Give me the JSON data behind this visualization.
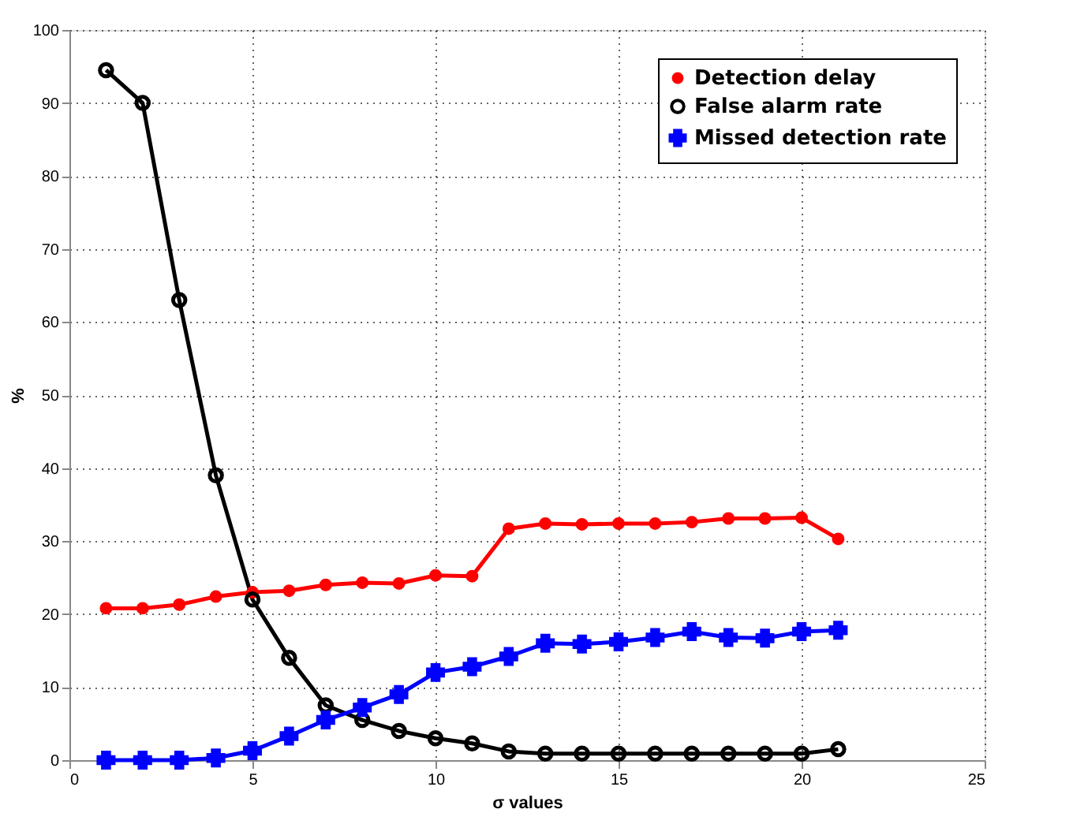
{
  "chart_data": {
    "type": "line",
    "xlabel": "σ values",
    "ylabel": "%",
    "x": [
      1,
      2,
      3,
      4,
      5,
      6,
      7,
      8,
      9,
      10,
      11,
      12,
      13,
      14,
      15,
      16,
      17,
      18,
      19,
      20,
      21
    ],
    "series": [
      {
        "name": "Detection delay",
        "color": "#ff0000",
        "marker": "circle",
        "values": [
          20.8,
          20.8,
          21.3,
          22.4,
          23.0,
          23.2,
          24.0,
          24.3,
          24.2,
          25.3,
          25.2,
          31.7,
          32.4,
          32.3,
          32.4,
          32.4,
          32.6,
          33.1,
          33.1,
          33.2,
          30.3
        ]
      },
      {
        "name": "False alarm rate",
        "color": "#000000",
        "marker": "open circle",
        "values": [
          94.5,
          90,
          63,
          39,
          22,
          14,
          7.5,
          5.5,
          4,
          3,
          2.3,
          1.2,
          0.9,
          0.9,
          0.9,
          0.9,
          0.9,
          0.9,
          0.9,
          0.9,
          1.5
        ]
      },
      {
        "name": "Missed detection rate",
        "color": "#0000ff",
        "marker": "cross",
        "values": [
          0,
          0,
          0,
          0.3,
          1.3,
          3.3,
          5.5,
          7.2,
          9,
          12,
          12.8,
          14.2,
          16,
          15.9,
          16.2,
          16.8,
          17.6,
          16.8,
          16.7,
          17.6,
          17.8
        ]
      }
    ],
    "xlim": [
      0,
      25
    ],
    "xticks": [
      0,
      5,
      10,
      15,
      20,
      25
    ],
    "ylim": [
      0,
      100
    ],
    "yticks": [
      0,
      10,
      20,
      30,
      40,
      50,
      60,
      70,
      80,
      90,
      100
    ],
    "grid": true,
    "legend": "top right",
    "line_style": "solid"
  }
}
